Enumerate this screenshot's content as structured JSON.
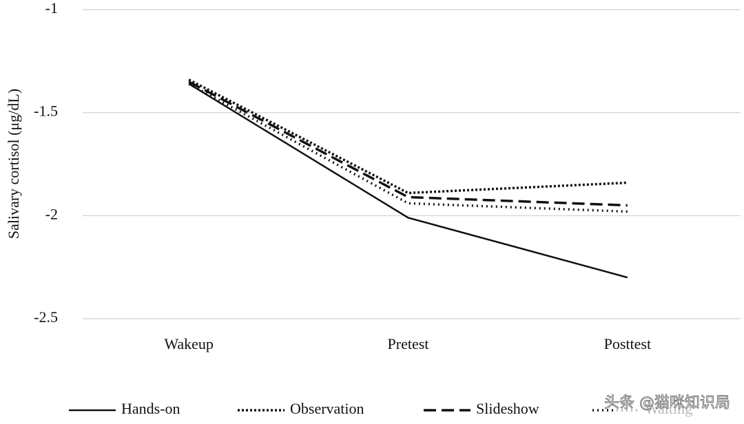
{
  "chart_data": {
    "type": "line",
    "y_label": "Salivary cortisol (μg/dL)",
    "categories": [
      "Wakeup",
      "Pretest",
      "Posttest"
    ],
    "series": [
      {
        "name": "Hands-on",
        "color": "#111111",
        "dash": "none",
        "values": [
          -1.36,
          -2.01,
          -2.3
        ]
      },
      {
        "name": "Observation",
        "color": "#111111",
        "dash": "3,3",
        "values": [
          -1.34,
          -1.89,
          -1.84
        ]
      },
      {
        "name": "Slideshow",
        "color": "#111111",
        "dash": "18,8",
        "values": [
          -1.35,
          -1.91,
          -1.95
        ]
      },
      {
        "name": "Waiting",
        "color": "#111111",
        "dash": "2,5",
        "values": [
          -1.36,
          -1.94,
          -1.98
        ]
      }
    ],
    "ylim": [
      -2.5,
      -1
    ],
    "yticks": [
      -1,
      -1.5,
      -2,
      -2.5
    ],
    "grid": true,
    "legend": "bottom",
    "watermark": "头条 @猫咪知识局"
  }
}
